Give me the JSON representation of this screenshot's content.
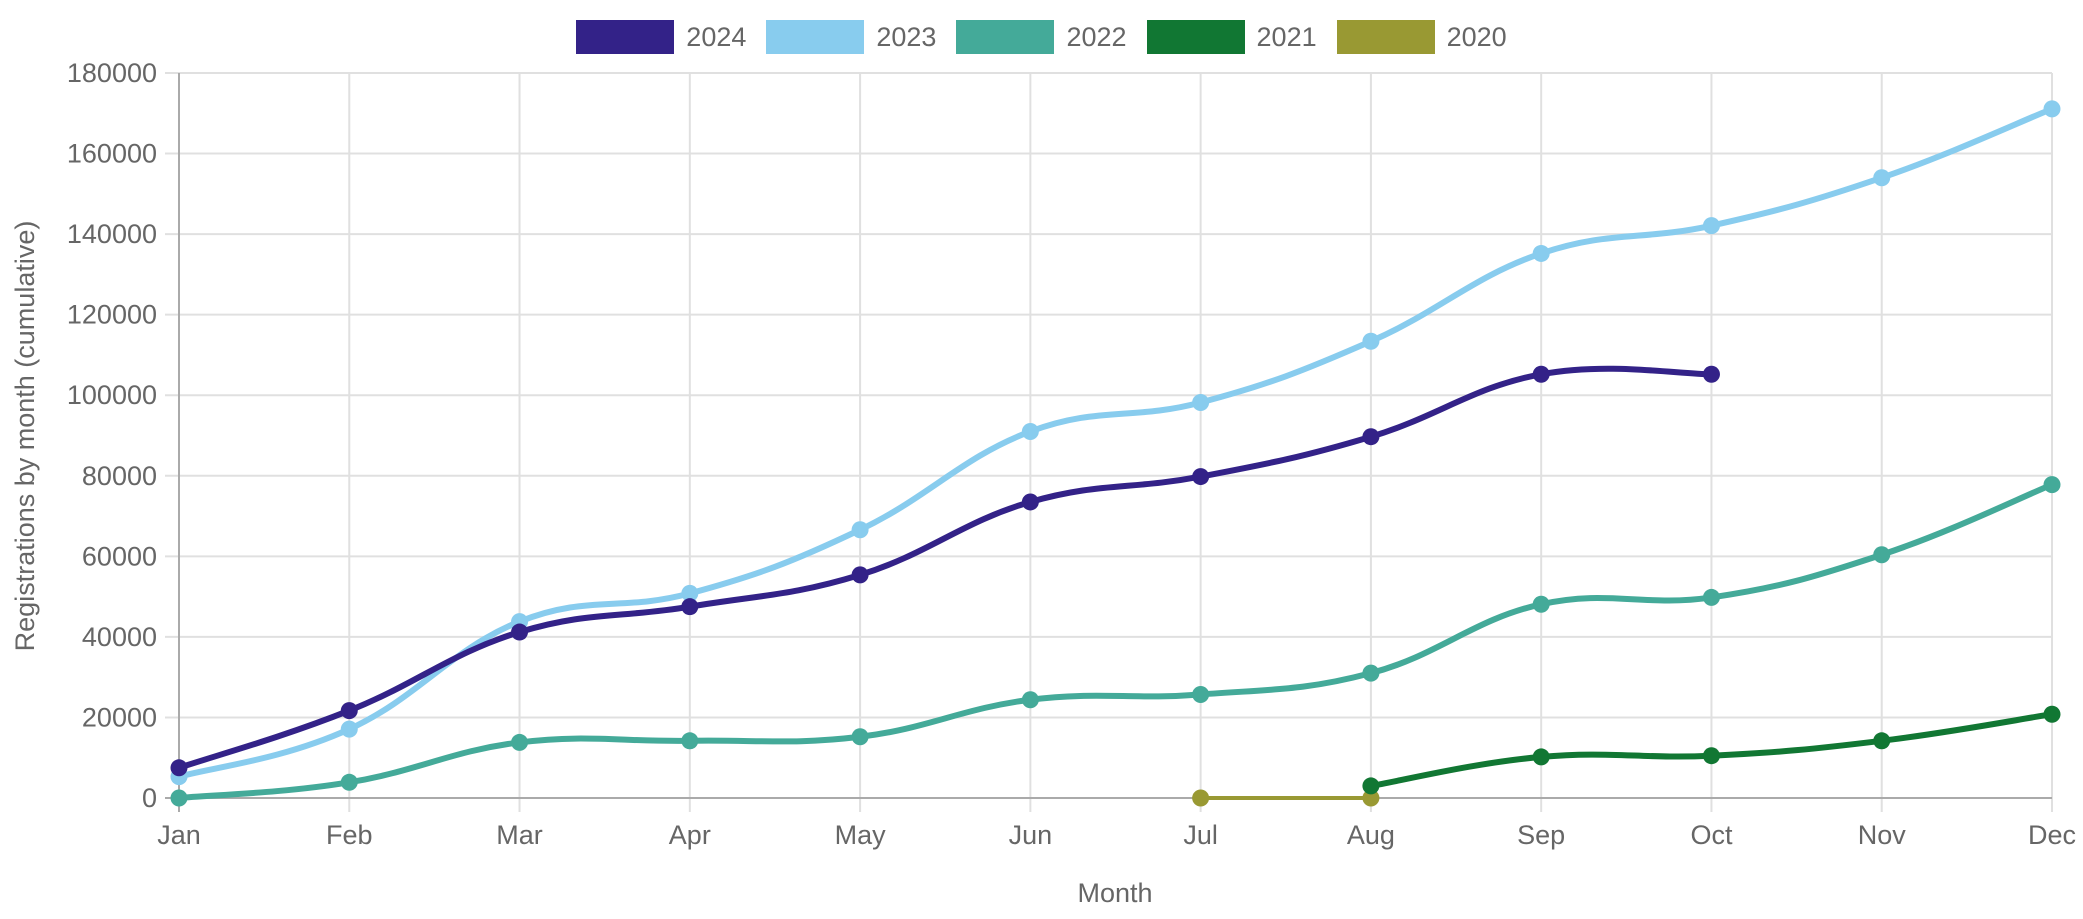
{
  "chart_data": {
    "type": "line",
    "title": "",
    "xlabel": "Month",
    "ylabel": "Registrations by month (cumulative)",
    "ylim": [
      0,
      180000
    ],
    "yticks": [
      "0",
      "20000",
      "40000",
      "60000",
      "80000",
      "100000",
      "120000",
      "140000",
      "160000",
      "180000"
    ],
    "ytick_values": [
      0,
      20000,
      40000,
      60000,
      80000,
      100000,
      120000,
      140000,
      160000,
      180000
    ],
    "categories": [
      "Jan",
      "Feb",
      "Mar",
      "Apr",
      "May",
      "Jun",
      "Jul",
      "Aug",
      "Sep",
      "Oct",
      "Nov",
      "Dec"
    ],
    "grid": true,
    "legend_position": "top",
    "series": [
      {
        "name": "2024",
        "color": "#332288",
        "values": [
          7500,
          21700,
          41200,
          47500,
          55400,
          73500,
          79800,
          89700,
          105200,
          105200,
          null,
          null
        ]
      },
      {
        "name": "2023",
        "color": "#88ccee",
        "values": [
          5300,
          17100,
          43800,
          50800,
          66600,
          91000,
          98200,
          113400,
          135200,
          142100,
          154000,
          171100
        ]
      },
      {
        "name": "2022",
        "color": "#44aa99",
        "values": [
          0,
          3900,
          13800,
          14200,
          15200,
          24400,
          25700,
          31000,
          48100,
          49800,
          60400,
          77800
        ]
      },
      {
        "name": "2021",
        "color": "#117733",
        "values": [
          null,
          null,
          null,
          null,
          null,
          null,
          null,
          3000,
          10200,
          10500,
          14200,
          20800
        ]
      },
      {
        "name": "2020",
        "color": "#999933",
        "values": [
          null,
          null,
          null,
          null,
          null,
          null,
          0,
          0,
          null,
          null,
          null,
          null
        ]
      }
    ]
  }
}
